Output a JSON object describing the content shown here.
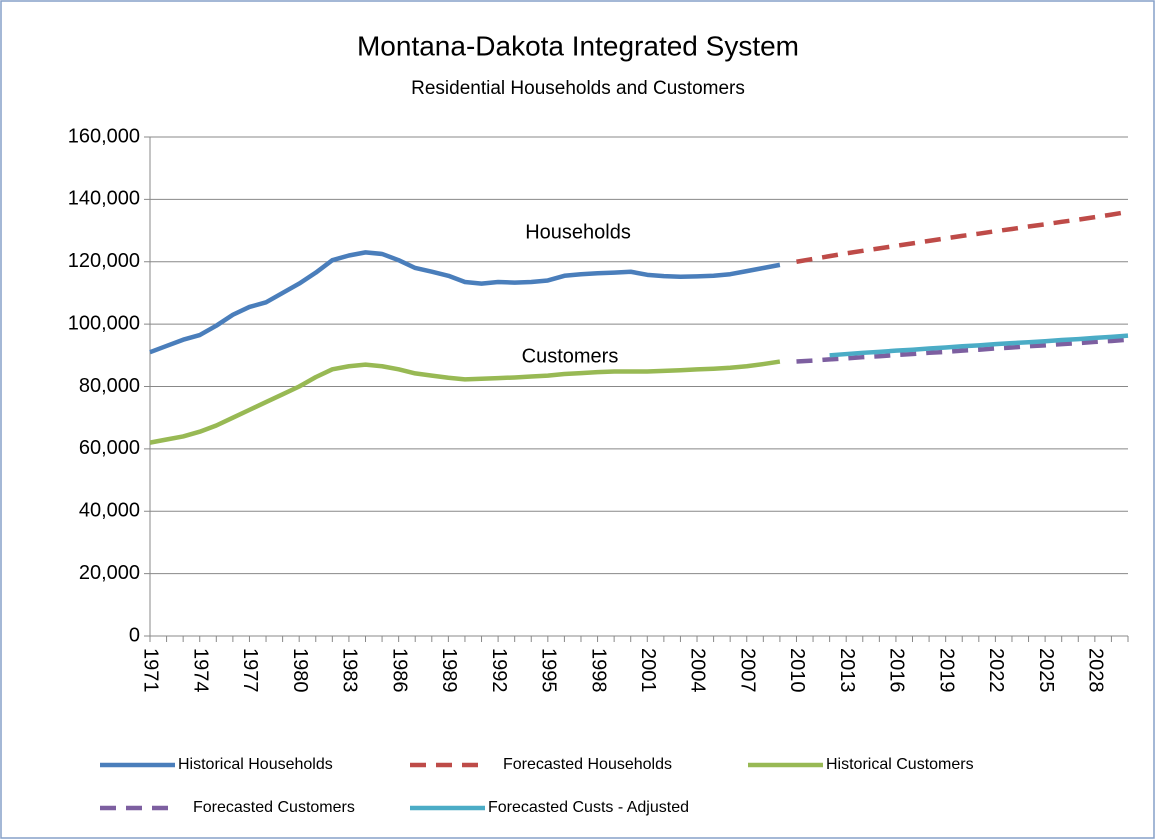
{
  "chart_data": {
    "type": "line",
    "title": "Montana-Dakota Integrated System",
    "subtitle": "Residential Households and Customers",
    "annotations": [
      "Households",
      "Customers"
    ],
    "x": [
      1971,
      1972,
      1973,
      1974,
      1975,
      1976,
      1977,
      1978,
      1979,
      1980,
      1981,
      1982,
      1983,
      1984,
      1985,
      1986,
      1987,
      1988,
      1989,
      1990,
      1991,
      1992,
      1993,
      1994,
      1995,
      1996,
      1997,
      1998,
      1999,
      2000,
      2001,
      2002,
      2003,
      2004,
      2005,
      2006,
      2007,
      2008,
      2009,
      2010,
      2011,
      2012,
      2013,
      2014,
      2015,
      2016,
      2017,
      2018,
      2019,
      2020,
      2021,
      2022,
      2023,
      2024,
      2025,
      2026,
      2027,
      2028,
      2029,
      2030
    ],
    "xlim": [
      1971,
      2030
    ],
    "xticks": [
      1971,
      1974,
      1977,
      1980,
      1983,
      1986,
      1989,
      1992,
      1995,
      1998,
      2001,
      2004,
      2007,
      2010,
      2013,
      2016,
      2019,
      2022,
      2025,
      2028
    ],
    "ylim": [
      0,
      160000
    ],
    "yticks": [
      {
        "value": 0,
        "label": "0"
      },
      {
        "value": 20000,
        "label": "20,000"
      },
      {
        "value": 40000,
        "label": "40,000"
      },
      {
        "value": 60000,
        "label": "60,000"
      },
      {
        "value": 80000,
        "label": "80,000"
      },
      {
        "value": 100000,
        "label": "100,000"
      },
      {
        "value": 120000,
        "label": "120,000"
      },
      {
        "value": 140000,
        "label": "140,000"
      },
      {
        "value": 160000,
        "label": "160,000"
      }
    ],
    "grid": true,
    "legend": "bottom",
    "series": [
      {
        "name": "Historical Households",
        "color": "#4a7ebb",
        "dashed": false,
        "values": [
          91000,
          93000,
          95000,
          96500,
          99500,
          103000,
          105500,
          107000,
          110000,
          113000,
          116500,
          120500,
          122000,
          123000,
          122500,
          120500,
          118000,
          116800,
          115500,
          113500,
          113000,
          113500,
          113300,
          113500,
          114000,
          115500,
          116000,
          116300,
          116500,
          116800,
          115800,
          115400,
          115200,
          115300,
          115500,
          116000,
          117000,
          118000,
          119000,
          null,
          null,
          null,
          null,
          null,
          null,
          null,
          null,
          null,
          null,
          null,
          null,
          null,
          null,
          null,
          null,
          null,
          null,
          null,
          null,
          null
        ]
      },
      {
        "name": "Forecasted Households",
        "color": "#be4b48",
        "dashed": true,
        "values": [
          null,
          null,
          null,
          null,
          null,
          null,
          null,
          null,
          null,
          null,
          null,
          null,
          null,
          null,
          null,
          null,
          null,
          null,
          null,
          null,
          null,
          null,
          null,
          null,
          null,
          null,
          null,
          null,
          null,
          null,
          null,
          null,
          null,
          null,
          null,
          null,
          null,
          null,
          null,
          120000,
          120900,
          121800,
          122700,
          123500,
          124300,
          125100,
          125900,
          126700,
          127500,
          128300,
          129000,
          129800,
          130500,
          131300,
          132000,
          132800,
          133500,
          134300,
          135100,
          136000
        ]
      },
      {
        "name": "Historical Customers",
        "color": "#98b954",
        "dashed": false,
        "values": [
          62000,
          63000,
          64000,
          65500,
          67500,
          70000,
          72500,
          75000,
          77500,
          80000,
          83000,
          85500,
          86500,
          87000,
          86500,
          85500,
          84200,
          83500,
          82800,
          82300,
          82500,
          82700,
          82900,
          83200,
          83500,
          84000,
          84300,
          84600,
          84800,
          84800,
          84800,
          85000,
          85200,
          85500,
          85700,
          86000,
          86500,
          87200,
          88000,
          null,
          null,
          null,
          null,
          null,
          null,
          null,
          null,
          null,
          null,
          null,
          null,
          null,
          null,
          null,
          null,
          null,
          null,
          null,
          null,
          null
        ]
      },
      {
        "name": "Forecasted Customers",
        "color": "#7d5fa0",
        "dashed": true,
        "values": [
          null,
          null,
          null,
          null,
          null,
          null,
          null,
          null,
          null,
          null,
          null,
          null,
          null,
          null,
          null,
          null,
          null,
          null,
          null,
          null,
          null,
          null,
          null,
          null,
          null,
          null,
          null,
          null,
          null,
          null,
          null,
          null,
          null,
          null,
          null,
          null,
          null,
          null,
          null,
          88000,
          88300,
          88700,
          89000,
          89400,
          89700,
          90100,
          90400,
          90800,
          91100,
          91500,
          91800,
          92200,
          92500,
          92900,
          93200,
          93600,
          93900,
          94300,
          94600,
          95000
        ]
      },
      {
        "name": "Forecasted Custs - Adjusted",
        "color": "#4bacc6",
        "dashed": false,
        "values": [
          null,
          null,
          null,
          null,
          null,
          null,
          null,
          null,
          null,
          null,
          null,
          null,
          null,
          null,
          null,
          null,
          null,
          null,
          null,
          null,
          null,
          null,
          null,
          null,
          null,
          null,
          null,
          null,
          null,
          null,
          null,
          null,
          null,
          null,
          null,
          null,
          null,
          null,
          null,
          null,
          null,
          90000,
          90400,
          90800,
          91100,
          91500,
          91800,
          92200,
          92500,
          92900,
          93200,
          93600,
          93900,
          94200,
          94500,
          94900,
          95200,
          95600,
          95900,
          96300
        ]
      }
    ]
  }
}
